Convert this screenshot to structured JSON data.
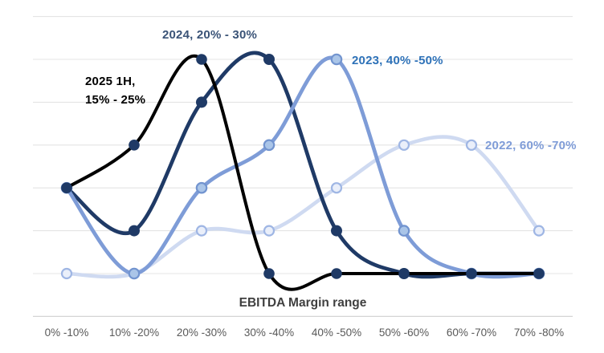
{
  "chart_data": {
    "type": "line",
    "title": "",
    "xlabel": "EBITDA Margin range",
    "ylabel": "",
    "categories": [
      "0% -10%",
      "10% -20%",
      "20% -30%",
      "30% -40%",
      "40% -50%",
      "50% -60%",
      "60% -70%",
      "70% -80%"
    ],
    "y_axis": {
      "min": -1,
      "max": 6,
      "gridline_step": 1,
      "tick_labels_shown": false
    },
    "legend": "none (series labeled by colored annotations on chart)",
    "smoothing": "excel-style spline with overshoot",
    "series": [
      {
        "name": "2022",
        "label": "2022, 60% -70%",
        "values": [
          0,
          0,
          1,
          1,
          2,
          3,
          3,
          1
        ],
        "line_color": "#cfdaf1",
        "line_width": 4.6,
        "marker_fill": "#eaeffa",
        "marker_border": "#9fb6e4",
        "marker_border_width": 2.2,
        "marker_radius": 6,
        "label_color": "#7f9cd7"
      },
      {
        "name": "2024",
        "label": "2024, 20% - 30%",
        "values": [
          2,
          1,
          4,
          5,
          1,
          0,
          0,
          0
        ],
        "line_color": "#1f3a66",
        "line_width": 4.7,
        "marker_fill": "#1f3a66",
        "marker_border": "#1f3a66",
        "marker_border_width": 0,
        "marker_radius": 7,
        "label_color": "#3a5377"
      },
      {
        "name": "2023",
        "label": "2023, 40% -50%",
        "values": [
          2,
          0,
          2,
          3,
          5,
          1,
          0,
          0
        ],
        "line_color": "#7e9cd7",
        "line_width": 4.7,
        "marker_fill": "#aac5e8",
        "marker_border": "#7294cf",
        "marker_border_width": 2.2,
        "marker_radius": 6.2,
        "label_color": "#2e72b8"
      },
      {
        "name": "2025 1H",
        "label": "2025 1H,\n15% - 25%",
        "values": [
          2,
          3,
          5,
          0,
          0,
          0,
          0,
          0
        ],
        "line_color": "#000000",
        "line_width": 4,
        "marker_fill": "#1f3a66",
        "marker_border": "#1f3a66",
        "marker_border_width": 0,
        "marker_radius": 6.8,
        "label_color": "#000000"
      }
    ],
    "gridline_color": "#e4e4e4",
    "axis_line_color": "#d4d4d4",
    "tick_label_color": "#595959",
    "xlabel_color": "#3f3f3f",
    "background_color": "#ffffff"
  }
}
